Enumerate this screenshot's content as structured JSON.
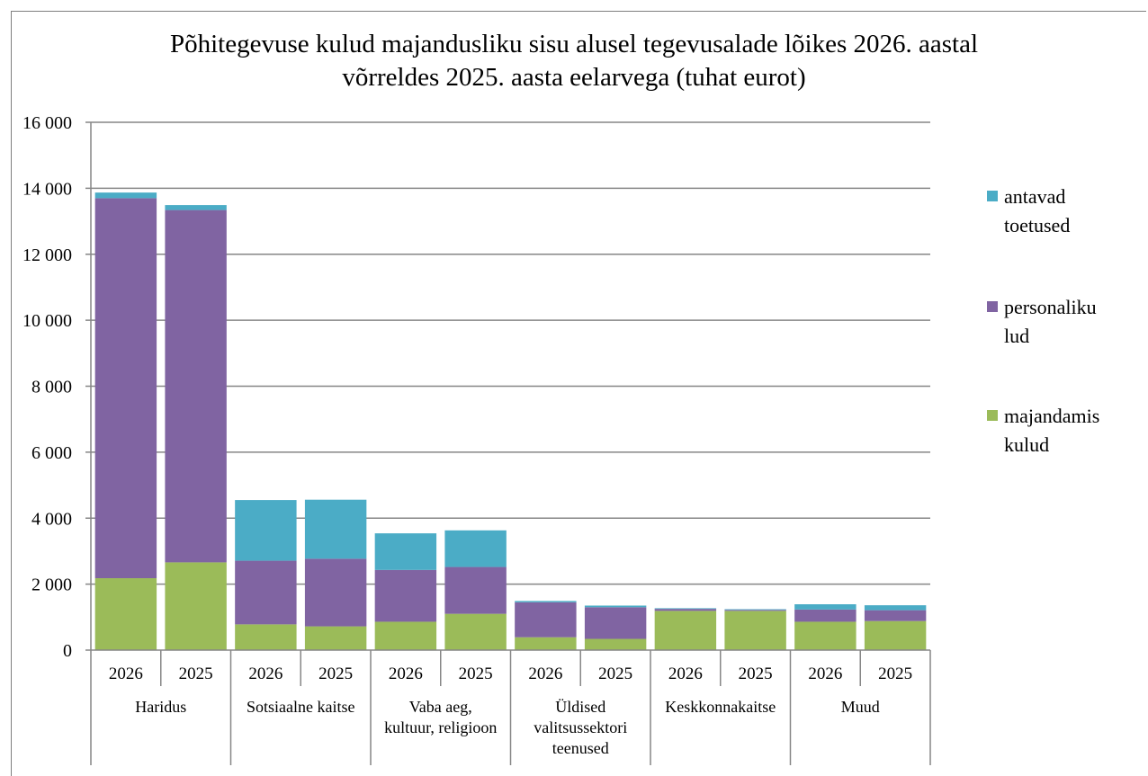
{
  "chart_data": {
    "type": "bar",
    "stacked": true,
    "title_lines": [
      "Põhitegevuse kulud majandusliku sisu alusel tegevusalade lõikes 2026. aastal",
      "võrreldes 2025. aasta eelarvega (tuhat eurot)"
    ],
    "groups": [
      {
        "label_lines": [
          "Haridus"
        ],
        "categories": [
          "2026",
          "2025"
        ]
      },
      {
        "label_lines": [
          "Sotsiaalne kaitse"
        ],
        "categories": [
          "2026",
          "2025"
        ]
      },
      {
        "label_lines": [
          "Vaba aeg,",
          "kultuur, religioon"
        ],
        "categories": [
          "2026",
          "2025"
        ]
      },
      {
        "label_lines": [
          "Üldised",
          "valitsussektori",
          "teenused"
        ],
        "categories": [
          "2026",
          "2025"
        ]
      },
      {
        "label_lines": [
          "Keskkonnakaitse"
        ],
        "categories": [
          "2026",
          "2025"
        ]
      },
      {
        "label_lines": [
          "Muud"
        ],
        "categories": [
          "2026",
          "2025"
        ]
      }
    ],
    "series": [
      {
        "name": "majandamis kulud",
        "legend_lines": [
          "majandamis",
          "kulud"
        ],
        "color": "#9bbb59",
        "values": [
          2180,
          2660,
          780,
          720,
          860,
          1100,
          390,
          340,
          1190,
          1190,
          860,
          880
        ]
      },
      {
        "name": "personaliku lud",
        "legend_lines": [
          "personaliku",
          "lud"
        ],
        "color": "#8064a2",
        "values": [
          11520,
          10680,
          1930,
          2050,
          1570,
          1420,
          1060,
          960,
          60,
          30,
          370,
          330
        ]
      },
      {
        "name": "antavad toetused",
        "legend_lines": [
          "antavad",
          "toetused"
        ],
        "color": "#4bacc6",
        "values": [
          170,
          150,
          1840,
          1790,
          1110,
          1110,
          40,
          50,
          20,
          20,
          160,
          150
        ]
      }
    ],
    "y_ticks": [
      "16 000",
      "14 000",
      "12 000",
      "10 000",
      "8 000",
      "6 000",
      "4 000",
      "2 000",
      "0"
    ],
    "ylim": [
      0,
      16000
    ],
    "grid": true,
    "legend_position": "right"
  }
}
